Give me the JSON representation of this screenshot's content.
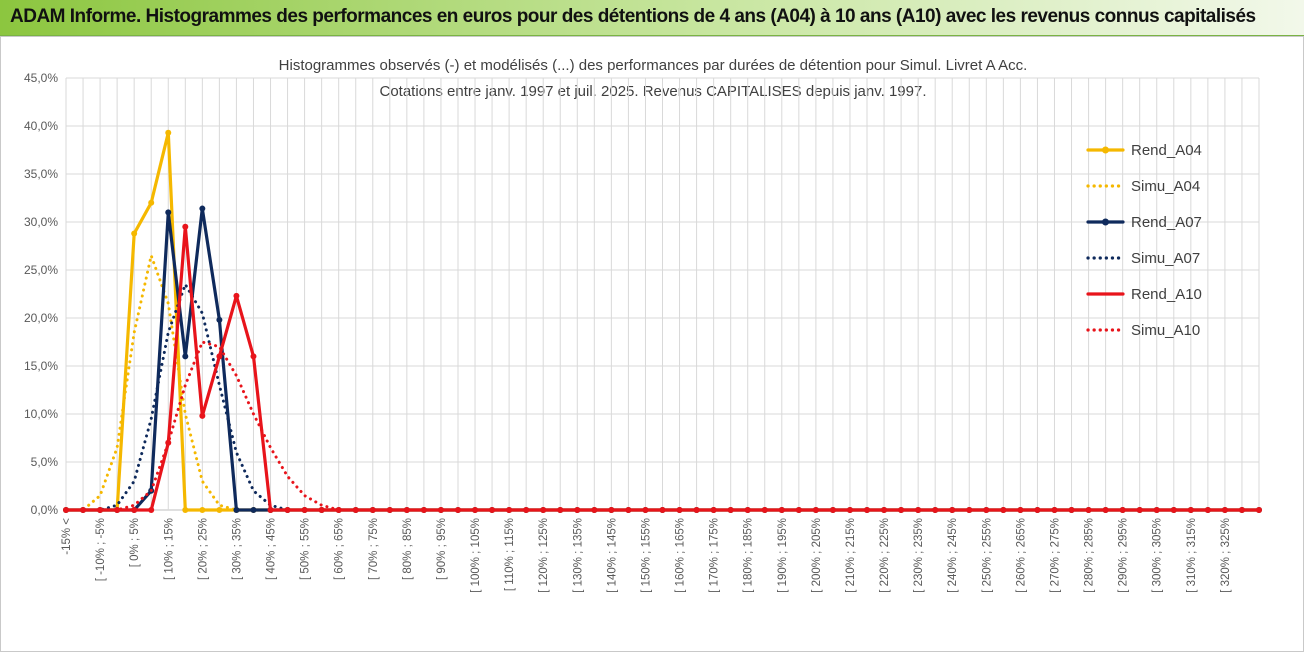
{
  "banner": {
    "title": "ADAM Informe. Histogrammes des performances en euros pour des détentions de 4 ans (A04) à 10 ans (A10) avec les revenus connus capitalisés"
  },
  "colors": {
    "banner_green": "#8cc63f",
    "A04": "#f5b800",
    "A07": "#0f2a5c",
    "A10": "#e8141b",
    "grid": "#d9d9d9"
  },
  "chart_data": {
    "type": "line",
    "title": "Histogrammes observés (-) et modélisés (...) des performances par durées de détention pour Simul. Livret A Acc.",
    "subtitle": "Cotations entre janv. 1997 et juil. 2025. Revenus CAPITALISES depuis janv. 1997.",
    "ylim": [
      0,
      45
    ],
    "y_ticks": [
      "0,0%",
      "5,0%",
      "10,0%",
      "15,0%",
      "20,0%",
      "25,0%",
      "30,0%",
      "35,0%",
      "40,0%",
      "45,0%"
    ],
    "grid": true,
    "legend_position": "right",
    "x_tick_labels": [
      "-15% <",
      "[ -10% ; -5%",
      "[ 0% ; 5%",
      "[ 10% ; 15%",
      "[ 20% ; 25%",
      "[ 30% ; 35%",
      "[ 40% ; 45%",
      "[ 50% ; 55%",
      "[ 60% ; 65%",
      "[ 70% ; 75%",
      "[ 80% ; 85%",
      "[ 90% ; 95%",
      "[ 100% ; 105%",
      "[ 110% ; 115%",
      "[ 120% ; 125%",
      "[ 130% ; 135%",
      "[ 140% ; 145%",
      "[ 150% ; 155%",
      "[ 160% ; 165%",
      "[ 170% ; 175%",
      "[ 180% ; 185%",
      "[ 190% ; 195%",
      "[ 200% ; 205%",
      "[ 210% ; 215%",
      "[ 220% ; 225%",
      "[ 230% ; 235%",
      "[ 240% ; 245%",
      "[ 250% ; 255%",
      "[ 260% ; 265%",
      "[ 270% ; 275%",
      "[ 280% ; 285%",
      "[ 290% ; 295%",
      "[ 300% ; 305%",
      "[ 310% ; 315%",
      "[ 320% ; 325%"
    ],
    "series": [
      {
        "name": "Rend_A04",
        "style": "solid-marker",
        "color": "#f5b800",
        "values": [
          0,
          0,
          0,
          0,
          28.8,
          32.0,
          39.3,
          0,
          0,
          0
        ]
      },
      {
        "name": "Simu_A04",
        "style": "dotted",
        "color": "#f5b800",
        "values": [
          0,
          0,
          1.5,
          6.5,
          18.5,
          26.5,
          21.5,
          10,
          3,
          0.5,
          0
        ]
      },
      {
        "name": "Rend_A07",
        "style": "solid-marker",
        "color": "#0f2a5c",
        "values": [
          0,
          0,
          0,
          0,
          0,
          2.0,
          31.0,
          16.0,
          31.4,
          19.8,
          0,
          0,
          0
        ]
      },
      {
        "name": "Simu_A07",
        "style": "dotted",
        "color": "#0f2a5c",
        "values": [
          0,
          0,
          0,
          0.5,
          3,
          9.5,
          18.5,
          23.5,
          20.5,
          13,
          6,
          2,
          0.5,
          0
        ]
      },
      {
        "name": "Rend_A10",
        "style": "solid",
        "color": "#e8141b",
        "values": [
          0,
          0,
          0,
          0,
          0,
          0,
          7.0,
          29.5,
          9.8,
          16.0,
          22.3,
          16.0,
          0,
          0
        ]
      },
      {
        "name": "Simu_A10",
        "style": "dotted",
        "color": "#e8141b",
        "values": [
          0,
          0,
          0,
          0,
          0.5,
          2,
          7,
          13,
          17.5,
          17,
          14,
          10,
          6.5,
          3.5,
          1.5,
          0.5,
          0
        ]
      }
    ],
    "n_categories": 70
  }
}
